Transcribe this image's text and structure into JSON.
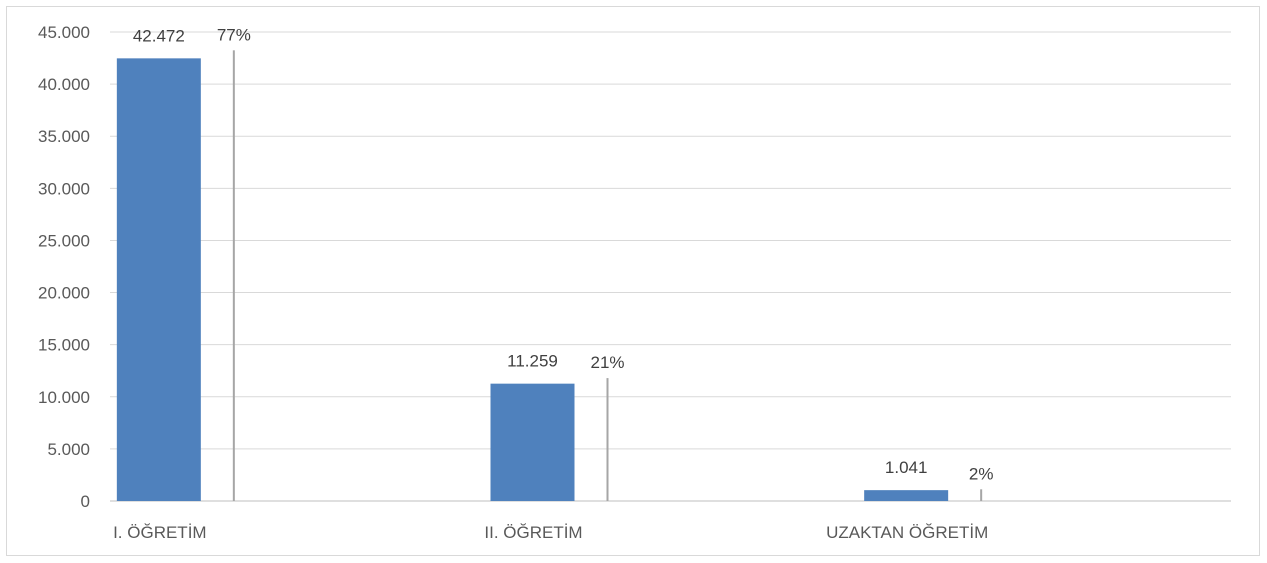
{
  "chart_data": {
    "type": "bar",
    "categories": [
      "I. ÖĞRETİM",
      "II. ÖĞRETİM",
      "UZAKTAN ÖĞRETİM"
    ],
    "series": [
      {
        "values": [
          42472,
          11259,
          1041
        ],
        "value_labels": [
          "42.472",
          "11.259",
          "1.041"
        ],
        "color": "#4f81bd"
      },
      {
        "values": [
          77,
          21,
          2
        ],
        "value_labels": [
          "77%",
          "21%",
          "2%"
        ],
        "color": "#a6a6a6",
        "scale": "percent"
      }
    ],
    "ylim": [
      0,
      45000
    ],
    "yticks": [
      0,
      5000,
      10000,
      15000,
      20000,
      25000,
      30000,
      35000,
      40000,
      45000
    ],
    "ytick_labels": [
      "0",
      "5.000",
      "10.000",
      "15.000",
      "20.000",
      "25.000",
      "30.000",
      "35.000",
      "40.000",
      "45.000"
    ],
    "grid": true,
    "legend": "none",
    "title": "",
    "xlabel": "",
    "ylabel": ""
  }
}
